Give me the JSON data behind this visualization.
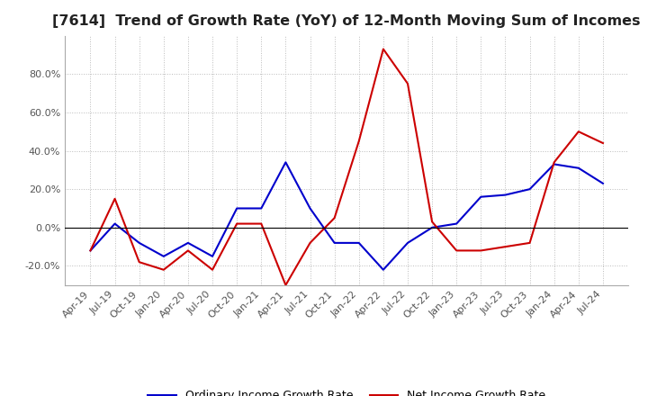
{
  "title": "[7614]  Trend of Growth Rate (YoY) of 12-Month Moving Sum of Incomes",
  "title_fontsize": 11.5,
  "ylim": [
    -30,
    100
  ],
  "yticks": [
    -20.0,
    0.0,
    20.0,
    40.0,
    60.0,
    80.0
  ],
  "background_color": "#ffffff",
  "grid_color": "#bbbbbb",
  "ordinary_color": "#0000cc",
  "net_color": "#cc0000",
  "dates": [
    "Apr-19",
    "Jul-19",
    "Oct-19",
    "Jan-20",
    "Apr-20",
    "Jul-20",
    "Oct-20",
    "Jan-21",
    "Apr-21",
    "Jul-21",
    "Oct-21",
    "Jan-22",
    "Apr-22",
    "Jul-22",
    "Oct-22",
    "Jan-23",
    "Apr-23",
    "Jul-23",
    "Oct-23",
    "Jan-24",
    "Apr-24",
    "Jul-24"
  ],
  "ordinary_income_growth": [
    -12,
    2,
    -8,
    -15,
    -8,
    -15,
    10,
    10,
    34,
    10,
    -8,
    -8,
    -22,
    -8,
    0,
    2,
    16,
    17,
    20,
    33,
    31,
    23
  ],
  "net_income_growth": [
    -12,
    15,
    -18,
    -22,
    -12,
    -22,
    2,
    2,
    -30,
    -8,
    5,
    45,
    93,
    75,
    3,
    -12,
    -12,
    -10,
    -8,
    34,
    50,
    44
  ],
  "legend_labels": [
    "Ordinary Income Growth Rate",
    "Net Income Growth Rate"
  ]
}
